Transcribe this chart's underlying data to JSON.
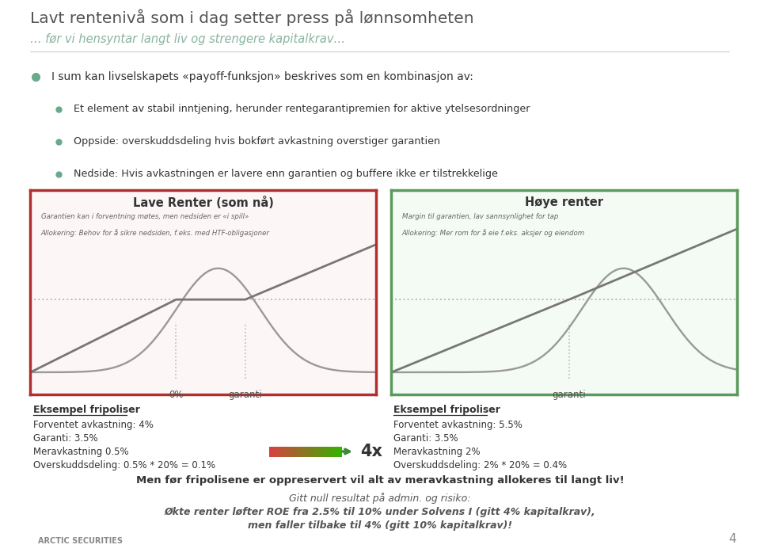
{
  "title": "Lavt rentenivå som i dag setter press på lønnsomheten",
  "subtitle": "… før vi hensyntar langt liv og strengere kapitalkrav…",
  "bg_color": "#ffffff",
  "title_color": "#555555",
  "subtitle_color": "#8ab4a0",
  "bullet_color": "#6aaa8c",
  "bullet_points": [
    "I sum kan livselskapets «payoff-funksjon» beskrives som en kombinasjon av:",
    "Et element av stabil inntjening, herunder rentegarantipremien for aktive ytelsesordninger",
    "Oppside: overskuddsdeling hvis bokført avkastning overstiger garantien",
    "Nedside: Hvis avkastningen er lavere enn garantien og buffere ikke er tilstrekkelige"
  ],
  "left_box_title": "Lave Renter (som nå)",
  "right_box_title": "Høye renter",
  "left_box_border": "#b03030",
  "right_box_border": "#5a9a5a",
  "left_box_bg": "#fdf6f6",
  "right_box_bg": "#f4faf4",
  "left_caption1": "Garantien kan i forventning møtes, men nedsiden er «i spill»",
  "left_caption2": "Allokering: Behov for å sikre nedsiden, f.eks. med HTF-obligasjoner",
  "right_caption1": "Margin til garantien, lav sannsynlighet for tap",
  "right_caption2": "Allokering: Mer rom for å eie f.eks. aksjer og eiendom",
  "left_xlabel1": "0%",
  "left_xlabel2": "garanti",
  "right_xlabel": "garanti",
  "left_example_title": "Eksempel fripoliser",
  "left_example_lines": [
    "Forventet avkastning: 4%",
    "Garanti: 3.5%",
    "Meravkastning 0.5%",
    "Overskuddsdeling: 0.5% * 20% = 0.1%"
  ],
  "right_example_title": "Eksempel fripoliser",
  "right_example_lines": [
    "Forventet avkastning: 5.5%",
    "Garanti: 3.5%",
    "Meravkastning 2%",
    "Overskuddsdeling: 2% * 20% = 0.4%"
  ],
  "arrow_label": "4x",
  "bottom_bold": "Men før fripolisene er oppreservert vil alt av meravkastning allokeres til langt liv!",
  "bottom_line1": "Gitt null resultat på admin. og risiko:",
  "bottom_line2": "Økte renter løfter ROE fra 2.5% til 10% under Solvens I (gitt 4% kapitalkrav),",
  "bottom_line3": "men faller tilbake til 4% (gitt 10% kapitalkrav)!",
  "footer_text": "ARCTIC SECURITIES",
  "page_number": "4",
  "curve_color": "#999999",
  "line_color": "#777777",
  "dotted_color": "#bbbbbb"
}
